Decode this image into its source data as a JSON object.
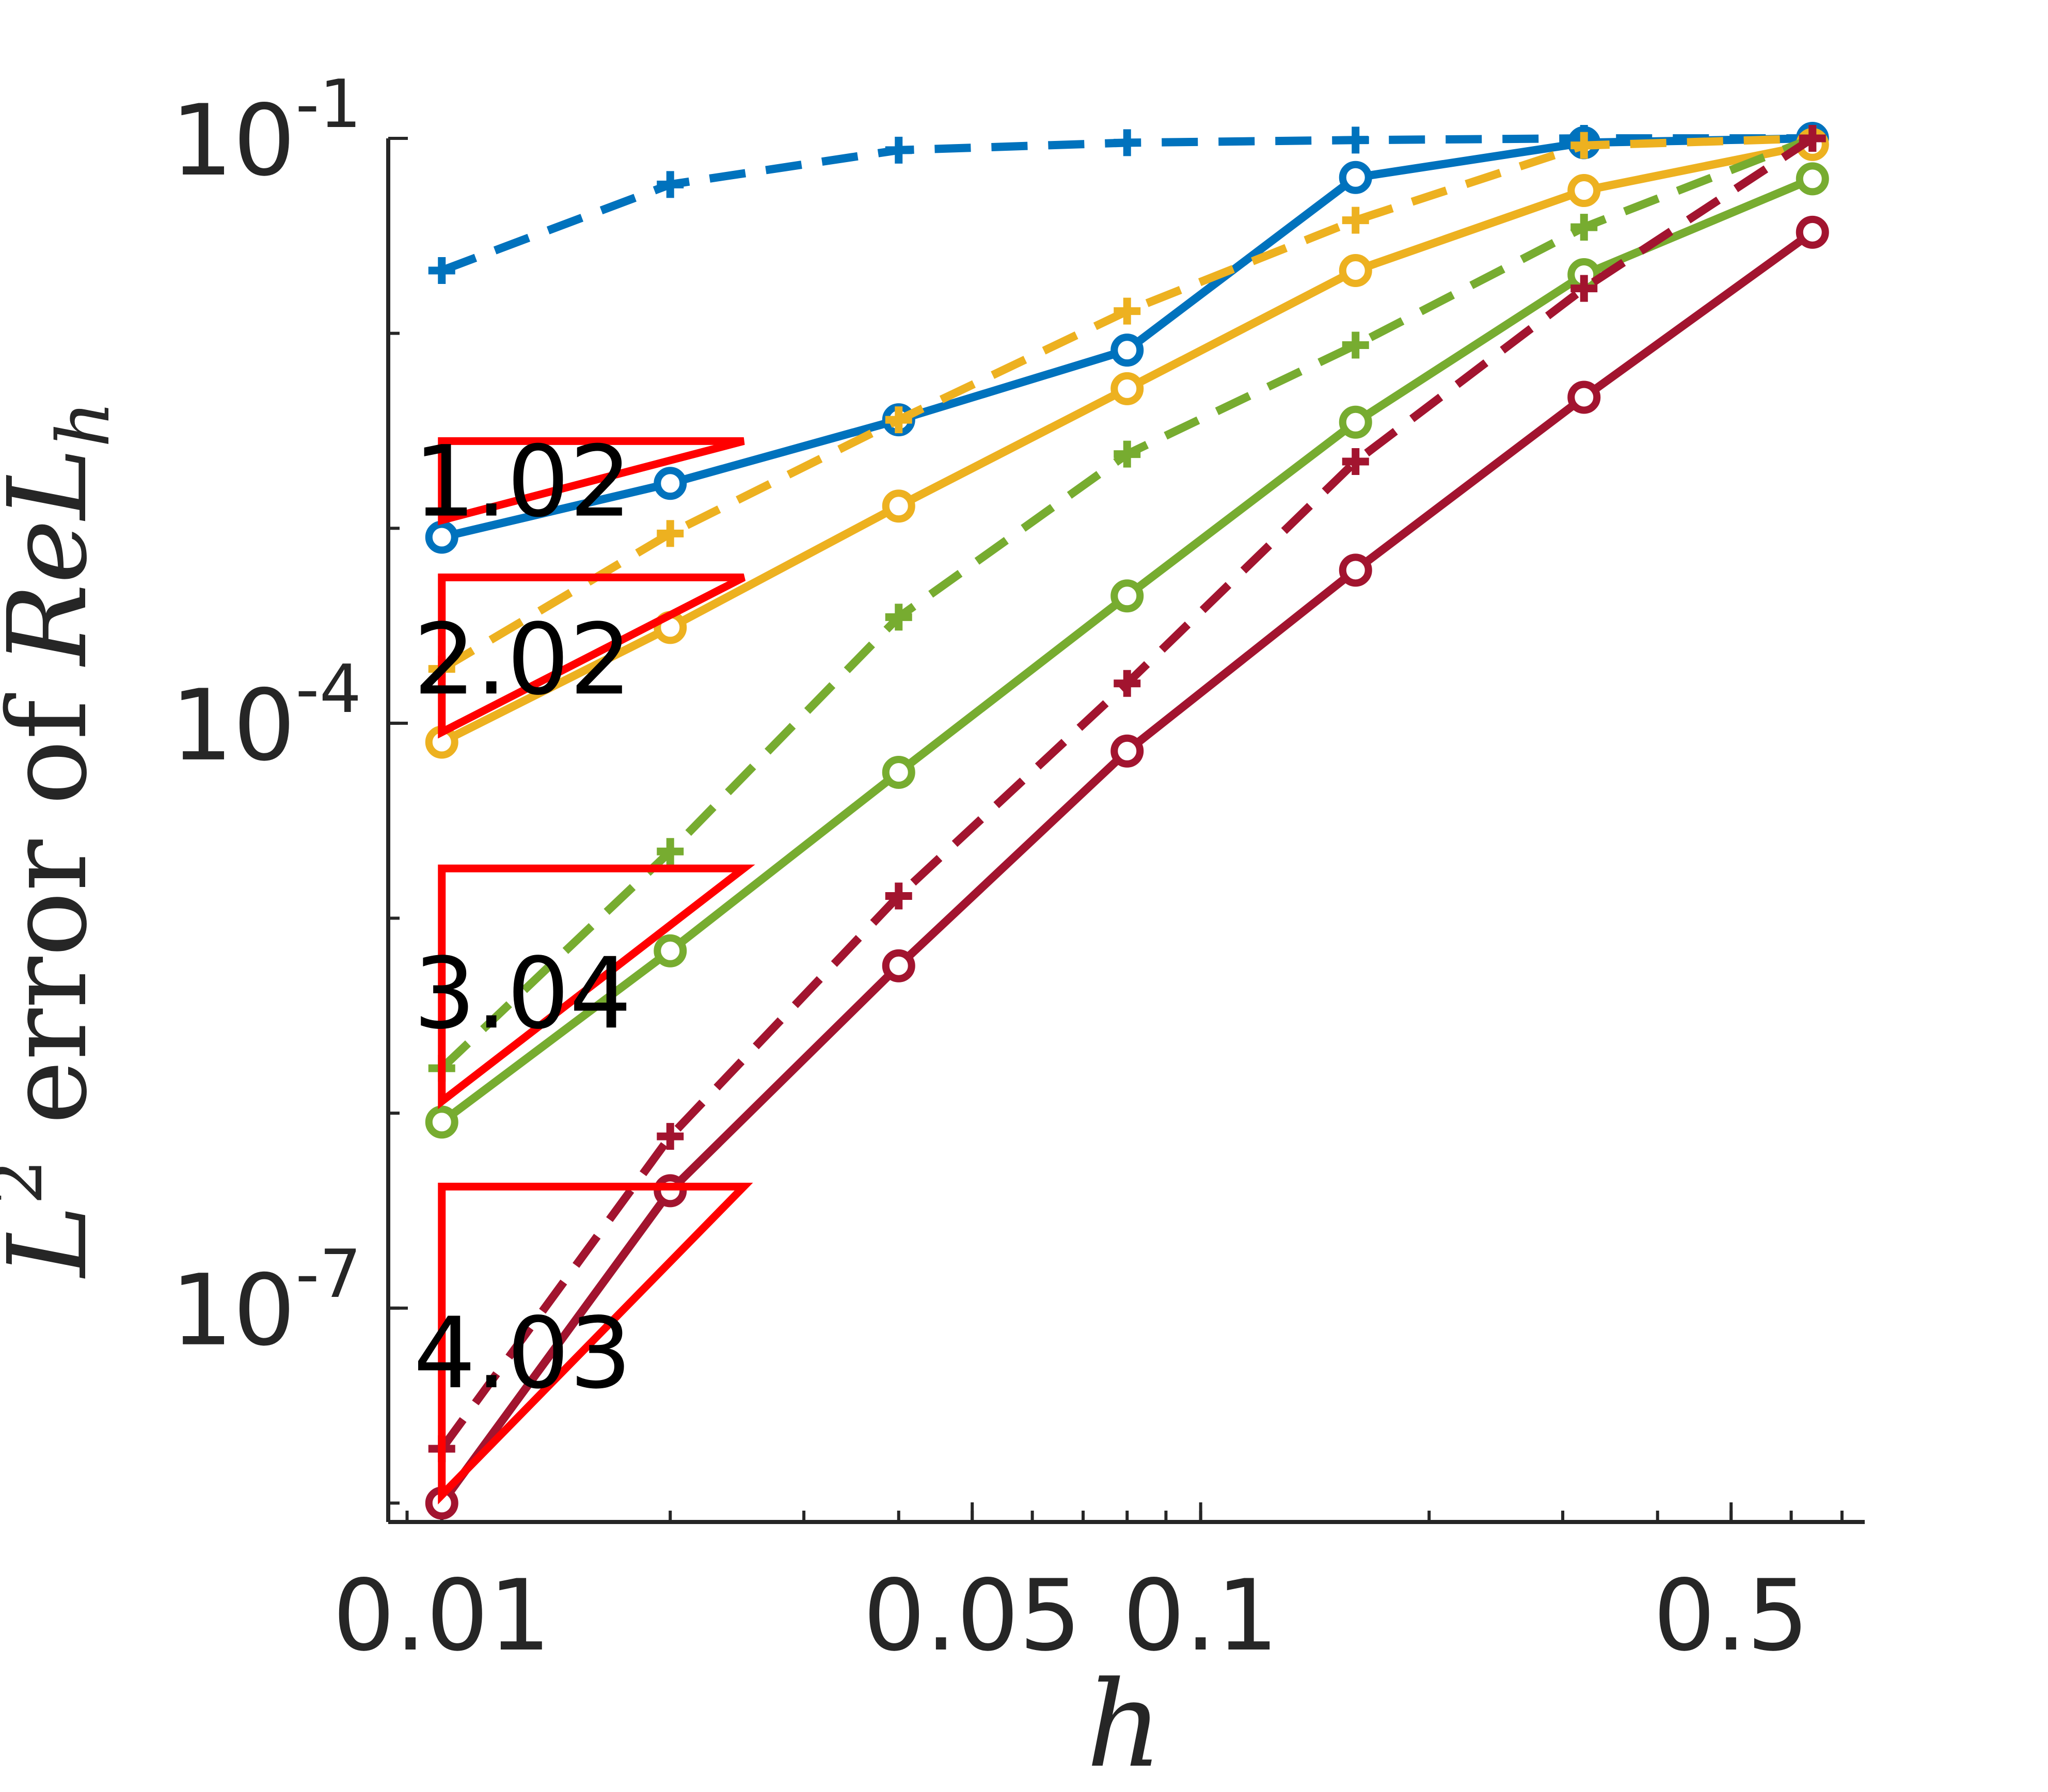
{
  "chart_data": {
    "type": "line",
    "xscale": "log",
    "yscale": "log",
    "xlim": [
      0.0085,
      0.75
    ],
    "ylim": [
      8e-09,
      0.1
    ],
    "grid": false,
    "legend": "none",
    "xlabel": "h",
    "ylabel": {
      "prefix": "L",
      "prefix_sup": "2",
      "middle": " error of ",
      "var": "ReL",
      "var_sub": "h"
    },
    "xticks": [
      {
        "value": 0.01,
        "label": "0.01"
      },
      {
        "value": 0.05,
        "label": "0.05"
      },
      {
        "value": 0.1,
        "label": "0.1"
      },
      {
        "value": 0.5,
        "label": "0.5"
      }
    ],
    "yticks": [
      {
        "value": 0.1,
        "base": "10",
        "exp": "-1"
      },
      {
        "value": 0.0001,
        "base": "10",
        "exp": "-4"
      },
      {
        "value": 1e-07,
        "base": "10",
        "exp": "-7"
      }
    ],
    "x": [
      0.01,
      0.02,
      0.04,
      0.08,
      0.16,
      0.32,
      0.64
    ],
    "series": [
      {
        "color": "#0072BD",
        "style": "solid",
        "marker": "circle",
        "values": [
          0.0009,
          0.0017,
          0.0036,
          0.0082,
          0.063,
          0.095,
          0.1
        ]
      },
      {
        "color": "#0072BD",
        "style": "dashed",
        "marker": "plus",
        "values": [
          0.021,
          0.058,
          0.087,
          0.095,
          0.098,
          0.1,
          0.1
        ]
      },
      {
        "color": "#EDB120",
        "style": "solid",
        "marker": "circle",
        "values": [
          8e-05,
          0.00031,
          0.0013,
          0.0052,
          0.021,
          0.054,
          0.093
        ]
      },
      {
        "color": "#EDB120",
        "style": "dashed",
        "marker": "plus",
        "values": [
          0.00019,
          0.00094,
          0.0036,
          0.013,
          0.038,
          0.092,
          0.1
        ]
      },
      {
        "color": "#77AC30",
        "style": "solid",
        "marker": "circle",
        "values": [
          9e-07,
          6.8e-06,
          5.6e-05,
          0.00045,
          0.0035,
          0.02,
          0.062
        ]
      },
      {
        "color": "#77AC30",
        "style": "dashed",
        "marker": "plus",
        "values": [
          1.7e-06,
          2.2e-05,
          0.00035,
          0.0024,
          0.0087,
          0.035,
          0.1
        ]
      },
      {
        "color": "#A2142F",
        "style": "solid",
        "marker": "circle",
        "values": [
          1e-08,
          4e-07,
          5.7e-06,
          7.2e-05,
          0.00061,
          0.0047,
          0.033
        ]
      },
      {
        "color": "#A2142F",
        "style": "dashed",
        "marker": "plus",
        "values": [
          1.9e-08,
          7.6e-07,
          1.3e-05,
          0.00016,
          0.0022,
          0.017,
          0.1
        ]
      }
    ],
    "slope_triangles": [
      {
        "label": "1.02",
        "color": "#FF0000",
        "x0": 0.01,
        "x1": 0.025,
        "y0": 0.0011,
        "y1": 0.0028
      },
      {
        "label": "2.02",
        "color": "#FF0000",
        "x0": 0.01,
        "x1": 0.025,
        "y0": 9e-05,
        "y1": 0.00056
      },
      {
        "label": "3.04",
        "color": "#FF0000",
        "x0": 0.01,
        "x1": 0.025,
        "y0": 1.15e-06,
        "y1": 1.8e-05
      },
      {
        "label": "4.03",
        "color": "#FF0000",
        "x0": 0.01,
        "x1": 0.025,
        "y0": 1.1e-08,
        "y1": 4.2e-07
      }
    ]
  }
}
